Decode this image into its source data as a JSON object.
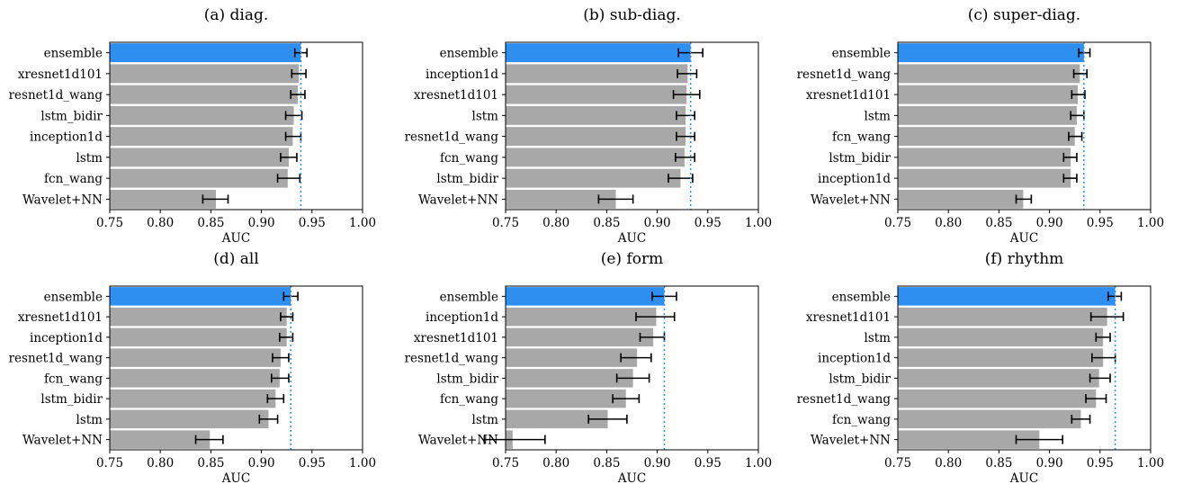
{
  "figure": {
    "description_panels": 6
  },
  "chart_data": [
    {
      "type": "bar",
      "orientation": "horizontal",
      "title": "(a) diag.",
      "xlabel": "AUC",
      "xlim": [
        0.75,
        1.0
      ],
      "xticks": [
        "0.75",
        "0.80",
        "0.85",
        "0.90",
        "0.95",
        "1.00"
      ],
      "categories": [
        "ensemble",
        "xresnet1d101",
        "resnet1d_wang",
        "lstm_bidir",
        "inception1d",
        "lstm",
        "fcn_wang",
        "Wavelet+NN"
      ],
      "values": [
        0.939,
        0.937,
        0.936,
        0.932,
        0.931,
        0.927,
        0.926,
        0.855
      ],
      "errors": [
        [
          0.933,
          0.945
        ],
        [
          0.93,
          0.944
        ],
        [
          0.929,
          0.943
        ],
        [
          0.924,
          0.94
        ],
        [
          0.924,
          0.939
        ],
        [
          0.919,
          0.935
        ],
        [
          0.916,
          0.938
        ],
        [
          0.842,
          0.867
        ]
      ],
      "highlight_index": 0,
      "reference_line": 0.939,
      "colors": {
        "highlight": "#2e8ff0",
        "bar": "#a8a8a8",
        "refline": "#2e8ff0"
      }
    },
    {
      "type": "bar",
      "orientation": "horizontal",
      "title": "(b) sub-diag.",
      "xlabel": "AUC",
      "xlim": [
        0.75,
        1.0
      ],
      "xticks": [
        "0.75",
        "0.80",
        "0.85",
        "0.90",
        "0.95",
        "1.00"
      ],
      "categories": [
        "ensemble",
        "inception1d",
        "xresnet1d101",
        "lstm",
        "resnet1d_wang",
        "fcn_wang",
        "lstm_bidir",
        "Wavelet+NN"
      ],
      "values": [
        0.933,
        0.93,
        0.929,
        0.928,
        0.928,
        0.927,
        0.923,
        0.859
      ],
      "errors": [
        [
          0.921,
          0.945
        ],
        [
          0.92,
          0.939
        ],
        [
          0.916,
          0.942
        ],
        [
          0.919,
          0.937
        ],
        [
          0.919,
          0.937
        ],
        [
          0.918,
          0.937
        ],
        [
          0.911,
          0.935
        ],
        [
          0.842,
          0.876
        ]
      ],
      "highlight_index": 0,
      "reference_line": 0.933,
      "colors": {
        "highlight": "#2e8ff0",
        "bar": "#a8a8a8",
        "refline": "#2e8ff0"
      }
    },
    {
      "type": "bar",
      "orientation": "horizontal",
      "title": "(c) super-diag.",
      "xlabel": "AUC",
      "xlim": [
        0.75,
        1.0
      ],
      "xticks": [
        "0.75",
        "0.80",
        "0.85",
        "0.90",
        "0.95",
        "1.00"
      ],
      "categories": [
        "ensemble",
        "resnet1d_wang",
        "xresnet1d101",
        "lstm",
        "fcn_wang",
        "lstm_bidir",
        "inception1d",
        "Wavelet+NN"
      ],
      "values": [
        0.934,
        0.93,
        0.928,
        0.927,
        0.925,
        0.921,
        0.921,
        0.874
      ],
      "errors": [
        [
          0.929,
          0.94
        ],
        [
          0.924,
          0.937
        ],
        [
          0.922,
          0.935
        ],
        [
          0.921,
          0.934
        ],
        [
          0.919,
          0.932
        ],
        [
          0.914,
          0.927
        ],
        [
          0.914,
          0.927
        ],
        [
          0.867,
          0.882
        ]
      ],
      "highlight_index": 0,
      "reference_line": 0.934,
      "colors": {
        "highlight": "#2e8ff0",
        "bar": "#a8a8a8",
        "refline": "#2e8ff0"
      }
    },
    {
      "type": "bar",
      "orientation": "horizontal",
      "title": "(d) all",
      "xlabel": "AUC",
      "xlim": [
        0.75,
        1.0
      ],
      "xticks": [
        "0.75",
        "0.80",
        "0.85",
        "0.90",
        "0.95",
        "1.00"
      ],
      "categories": [
        "ensemble",
        "xresnet1d101",
        "inception1d",
        "resnet1d_wang",
        "fcn_wang",
        "lstm_bidir",
        "lstm",
        "Wavelet+NN"
      ],
      "values": [
        0.929,
        0.925,
        0.925,
        0.919,
        0.918,
        0.914,
        0.907,
        0.849
      ],
      "errors": [
        [
          0.922,
          0.936
        ],
        [
          0.919,
          0.931
        ],
        [
          0.918,
          0.931
        ],
        [
          0.911,
          0.927
        ],
        [
          0.91,
          0.927
        ],
        [
          0.906,
          0.922
        ],
        [
          0.898,
          0.916
        ],
        [
          0.835,
          0.862
        ]
      ],
      "highlight_index": 0,
      "reference_line": 0.929,
      "colors": {
        "highlight": "#2e8ff0",
        "bar": "#a8a8a8",
        "refline": "#2e8ff0"
      }
    },
    {
      "type": "bar",
      "orientation": "horizontal",
      "title": "(e) form",
      "xlabel": "AUC",
      "xlim": [
        0.75,
        1.0
      ],
      "xticks": [
        "0.75",
        "0.80",
        "0.85",
        "0.90",
        "0.95",
        "1.00"
      ],
      "categories": [
        "ensemble",
        "inception1d",
        "xresnet1d101",
        "resnet1d_wang",
        "lstm_bidir",
        "fcn_wang",
        "lstm",
        "Wavelet+NN"
      ],
      "values": [
        0.907,
        0.899,
        0.896,
        0.88,
        0.876,
        0.869,
        0.851,
        0.757
      ],
      "errors": [
        [
          0.895,
          0.919
        ],
        [
          0.879,
          0.917
        ],
        [
          0.883,
          0.907
        ],
        [
          0.864,
          0.894
        ],
        [
          0.86,
          0.892
        ],
        [
          0.856,
          0.882
        ],
        [
          0.832,
          0.87
        ],
        [
          0.729,
          0.789
        ]
      ],
      "highlight_index": 0,
      "reference_line": 0.907,
      "colors": {
        "highlight": "#2e8ff0",
        "bar": "#a8a8a8",
        "refline": "#2e8ff0"
      }
    },
    {
      "type": "bar",
      "orientation": "horizontal",
      "title": "(f) rhythm",
      "xlabel": "AUC",
      "xlim": [
        0.75,
        1.0
      ],
      "xticks": [
        "0.75",
        "0.80",
        "0.85",
        "0.90",
        "0.95",
        "1.00"
      ],
      "categories": [
        "ensemble",
        "xresnet1d101",
        "lstm",
        "inception1d",
        "lstm_bidir",
        "resnet1d_wang",
        "fcn_wang",
        "Wavelet+NN"
      ],
      "values": [
        0.965,
        0.957,
        0.953,
        0.953,
        0.949,
        0.946,
        0.931,
        0.89
      ],
      "errors": [
        [
          0.958,
          0.971
        ],
        [
          0.941,
          0.973
        ],
        [
          0.946,
          0.96
        ],
        [
          0.942,
          0.965
        ],
        [
          0.94,
          0.96
        ],
        [
          0.936,
          0.956
        ],
        [
          0.922,
          0.94
        ],
        [
          0.867,
          0.913
        ]
      ],
      "highlight_index": 0,
      "reference_line": 0.965,
      "colors": {
        "highlight": "#2e8ff0",
        "bar": "#a8a8a8",
        "refline": "#2e8ff0"
      }
    }
  ]
}
